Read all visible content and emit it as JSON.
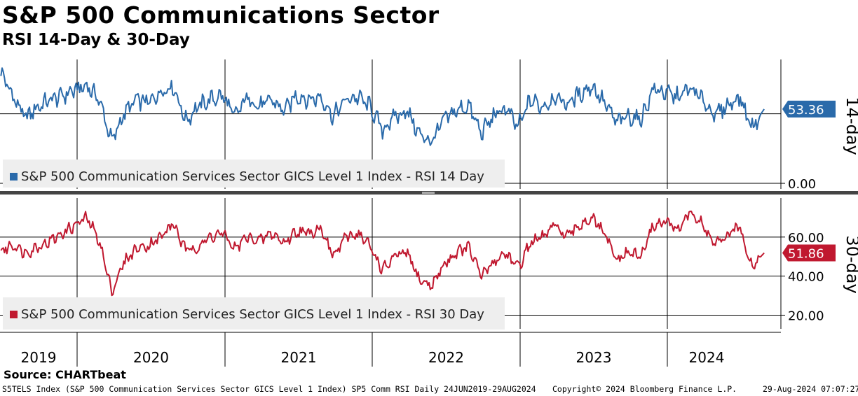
{
  "header": {
    "title": "S&P 500 Communications Sector",
    "subtitle": "RSI 14-Day & 30-Day"
  },
  "footer": {
    "source": "Source: CHARTbeat",
    "ticker_info": "S5TELS Index (S&P 500 Communication Services Sector GICS Level 1 Index) SP5 Comm RSI  Daily 24JUN2019-29AUG2024",
    "copyright": "Copyright© 2024 Bloomberg Finance L.P.",
    "timestamp": "29-Aug-2024 07:07:27"
  },
  "colors": {
    "rsi14": "#2a6aaa",
    "rsi30": "#c0182f",
    "legend_bg": "#eeeeee",
    "axis": "#000000"
  },
  "chart_data": [
    {
      "type": "line",
      "panel": "top",
      "series_name": "S&P 500 Communication Services Sector GICS Level 1 Index - RSI 14 Day",
      "axis_title": "14-day",
      "y_tick_labels": [
        "0.00"
      ],
      "last_value_label": "53.36",
      "gridlines": [
        50,
        0
      ],
      "ylim": [
        -4,
        89
      ],
      "x": [
        "2019-06",
        "2019-07",
        "2019-08",
        "2019-09",
        "2019-10",
        "2019-11",
        "2019-12",
        "2020-01",
        "2020-02",
        "2020-03",
        "2020-04",
        "2020-05",
        "2020-06",
        "2020-07",
        "2020-08",
        "2020-09",
        "2020-10",
        "2020-11",
        "2020-12",
        "2021-01",
        "2021-02",
        "2021-03",
        "2021-04",
        "2021-05",
        "2021-06",
        "2021-07",
        "2021-08",
        "2021-09",
        "2021-10",
        "2021-11",
        "2021-12",
        "2022-01",
        "2022-02",
        "2022-03",
        "2022-04",
        "2022-05",
        "2022-06",
        "2022-07",
        "2022-08",
        "2022-09",
        "2022-10",
        "2022-11",
        "2022-12",
        "2023-01",
        "2023-02",
        "2023-03",
        "2023-04",
        "2023-05",
        "2023-06",
        "2023-07",
        "2023-08",
        "2023-09",
        "2023-10",
        "2023-11",
        "2023-12",
        "2024-01",
        "2024-02",
        "2024-03",
        "2024-04",
        "2024-05",
        "2024-06",
        "2024-07",
        "2024-08"
      ],
      "values": [
        80,
        62,
        47,
        55,
        60,
        63,
        67,
        70,
        60,
        30,
        50,
        60,
        58,
        66,
        70,
        45,
        55,
        60,
        63,
        48,
        62,
        55,
        60,
        52,
        63,
        60,
        62,
        48,
        60,
        62,
        55,
        38,
        48,
        52,
        35,
        30,
        46,
        52,
        56,
        36,
        48,
        54,
        40,
        60,
        55,
        62,
        57,
        64,
        70,
        58,
        44,
        48,
        46,
        68,
        65,
        62,
        68,
        60,
        49,
        56,
        62,
        40,
        53.36
      ]
    },
    {
      "type": "line",
      "panel": "bottom",
      "series_name": "S&P 500 Communication Services Sector GICS Level 1 Index - RSI 30 Day",
      "axis_title": "30-day",
      "y_tick_labels": [
        "60.00",
        "40.00",
        "20.00"
      ],
      "last_value_label": "51.86",
      "gridlines": [
        60,
        40,
        20
      ],
      "ylim": [
        13,
        80
      ],
      "x": [
        "2019-06",
        "2019-07",
        "2019-08",
        "2019-09",
        "2019-10",
        "2019-11",
        "2019-12",
        "2020-01",
        "2020-02",
        "2020-03",
        "2020-04",
        "2020-05",
        "2020-06",
        "2020-07",
        "2020-08",
        "2020-09",
        "2020-10",
        "2020-11",
        "2020-12",
        "2021-01",
        "2021-02",
        "2021-03",
        "2021-04",
        "2021-05",
        "2021-06",
        "2021-07",
        "2021-08",
        "2021-09",
        "2021-10",
        "2021-11",
        "2021-12",
        "2022-01",
        "2022-02",
        "2022-03",
        "2022-04",
        "2022-05",
        "2022-06",
        "2022-07",
        "2022-08",
        "2022-09",
        "2022-10",
        "2022-11",
        "2022-12",
        "2023-01",
        "2023-02",
        "2023-03",
        "2023-04",
        "2023-05",
        "2023-06",
        "2023-07",
        "2023-08",
        "2023-09",
        "2023-10",
        "2023-11",
        "2023-12",
        "2024-01",
        "2024-02",
        "2024-03",
        "2024-04",
        "2024-05",
        "2024-06",
        "2024-07",
        "2024-08"
      ],
      "values": [
        53,
        56,
        52,
        55,
        58,
        62,
        66,
        70,
        58,
        32,
        47,
        54,
        56,
        60,
        67,
        53,
        55,
        60,
        62,
        54,
        60,
        58,
        62,
        57,
        63,
        62,
        65,
        50,
        60,
        62,
        55,
        43,
        50,
        52,
        38,
        35,
        46,
        52,
        55,
        40,
        47,
        52,
        44,
        57,
        60,
        66,
        60,
        66,
        70,
        62,
        48,
        52,
        50,
        66,
        68,
        64,
        73,
        66,
        56,
        60,
        66,
        45,
        51.86
      ]
    }
  ],
  "x_axis": {
    "year_labels": [
      "2019",
      "2020",
      "2021",
      "2022",
      "2023",
      "2024"
    ]
  }
}
